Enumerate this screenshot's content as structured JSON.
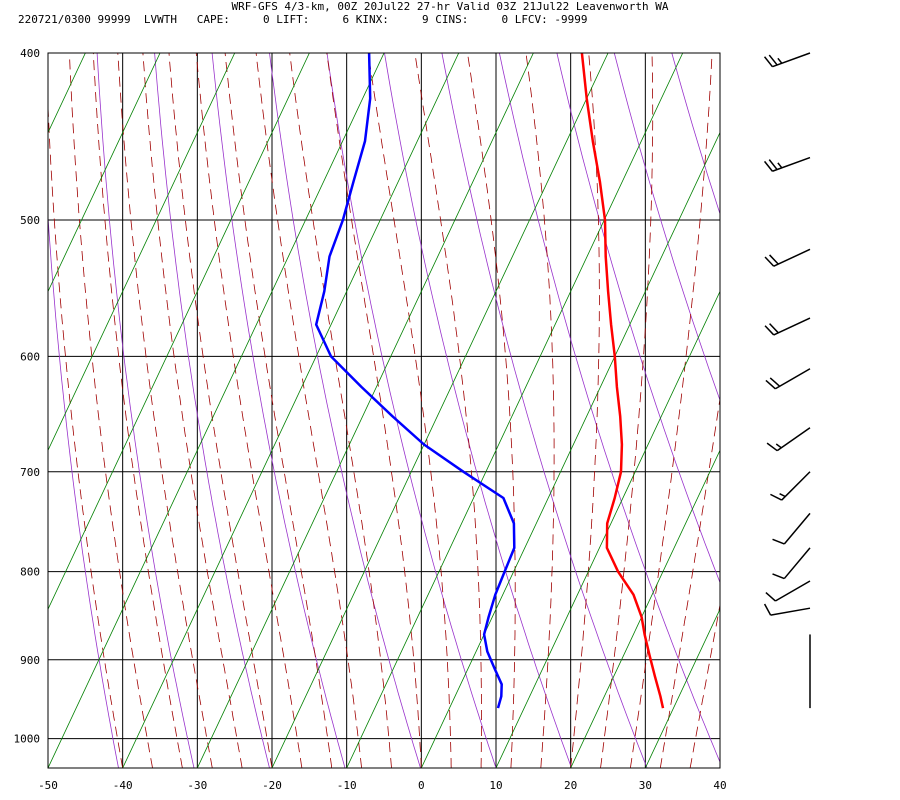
{
  "header": {
    "title": "WRF-GFS 4/3-km, 00Z 20Jul22 27-hr Valid 03Z 21Jul22 Leavenworth WA",
    "subtitle": "220721/0300 99999  LVWTH   CAPE:     0 LIFT:     6 KINX:     9 CINS:     0 LFCV: -9999"
  },
  "chart_data": {
    "type": "line",
    "x_axis": {
      "ticks": [
        -50,
        -40,
        -30,
        -20,
        -10,
        0,
        10,
        20,
        30,
        40
      ],
      "range": [
        -50,
        40
      ]
    },
    "y_axis": {
      "ticks": [
        400,
        500,
        600,
        700,
        800,
        900,
        1000
      ],
      "range": [
        400,
        1040
      ],
      "scale": "log"
    },
    "grid": true,
    "skew": true,
    "series": [
      {
        "color": "#ff0000",
        "points": [
          [
            28.6,
            960
          ],
          [
            27.5,
            945
          ],
          [
            25.5,
            920
          ],
          [
            23.5,
            895
          ],
          [
            21.5,
            870
          ],
          [
            20,
            850
          ],
          [
            17.5,
            825
          ],
          [
            14,
            800
          ],
          [
            11,
            775
          ],
          [
            9.5,
            750
          ],
          [
            8.9,
            725
          ],
          [
            8.1,
            700
          ],
          [
            6.5,
            675
          ],
          [
            4.5,
            650
          ],
          [
            2.2,
            625
          ],
          [
            0,
            600
          ],
          [
            -2.5,
            575
          ],
          [
            -5,
            550
          ],
          [
            -7.5,
            525
          ],
          [
            -9.9,
            500
          ],
          [
            -13,
            475
          ],
          [
            -16.5,
            450
          ],
          [
            -20,
            425
          ],
          [
            -23.5,
            400
          ]
        ]
      },
      {
        "color": "#0000ff",
        "points": [
          [
            6.5,
            960
          ],
          [
            6.2,
            945
          ],
          [
            5.5,
            930
          ],
          [
            3.5,
            910
          ],
          [
            1.5,
            890
          ],
          [
            0,
            870
          ],
          [
            -0.5,
            850
          ],
          [
            -1,
            825
          ],
          [
            -1.2,
            800
          ],
          [
            -1.4,
            775
          ],
          [
            -3,
            750
          ],
          [
            -6,
            725
          ],
          [
            -13,
            700
          ],
          [
            -20,
            675
          ],
          [
            -26,
            650
          ],
          [
            -32,
            625
          ],
          [
            -38,
            600
          ],
          [
            -42,
            575
          ],
          [
            -43,
            550
          ],
          [
            -44.5,
            525
          ],
          [
            -45,
            500
          ],
          [
            -46,
            475
          ],
          [
            -47,
            450
          ],
          [
            -49,
            425
          ],
          [
            -52,
            400
          ]
        ]
      }
    ],
    "wind_barbs": [
      {
        "p": 400,
        "dir": 250,
        "kt": 25
      },
      {
        "p": 460,
        "dir": 250,
        "kt": 25
      },
      {
        "p": 520,
        "dir": 245,
        "kt": 20
      },
      {
        "p": 570,
        "dir": 245,
        "kt": 20
      },
      {
        "p": 610,
        "dir": 240,
        "kt": 20
      },
      {
        "p": 660,
        "dir": 235,
        "kt": 15
      },
      {
        "p": 700,
        "dir": 225,
        "kt": 15
      },
      {
        "p": 740,
        "dir": 220,
        "kt": 10
      },
      {
        "p": 775,
        "dir": 220,
        "kt": 10
      },
      {
        "p": 810,
        "dir": 240,
        "kt": 10
      },
      {
        "p": 840,
        "dir": 260,
        "kt": 10
      }
    ]
  }
}
